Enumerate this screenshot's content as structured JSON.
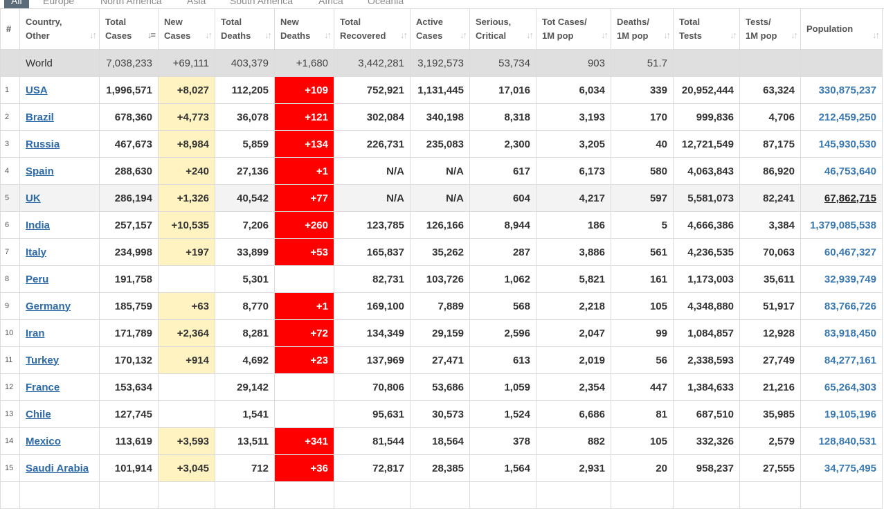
{
  "tabs": [
    "All",
    "Europe",
    "North America",
    "Asia",
    "South America",
    "Africa",
    "Oceania"
  ],
  "headers": {
    "num": "#",
    "country": [
      "Country,",
      "Other"
    ],
    "total_cases": [
      "Total",
      "Cases"
    ],
    "new_cases": [
      "New",
      "Cases"
    ],
    "total_deaths": [
      "Total",
      "Deaths"
    ],
    "new_deaths": [
      "New",
      "Deaths"
    ],
    "total_recovered": [
      "Total",
      "Recovered"
    ],
    "active_cases": [
      "Active",
      "Cases"
    ],
    "serious": [
      "Serious,",
      "Critical"
    ],
    "tot_cases_pop": [
      "Tot Cases/",
      "1M pop"
    ],
    "deaths_pop": [
      "Deaths/",
      "1M pop"
    ],
    "total_tests": [
      "Total",
      "Tests"
    ],
    "tests_pop": [
      "Tests/",
      "1M pop"
    ],
    "population": "Population"
  },
  "world": {
    "country": "World",
    "total_cases": "7,038,233",
    "new_cases": "+69,111",
    "total_deaths": "403,379",
    "new_deaths": "+1,680",
    "total_recovered": "3,442,281",
    "active_cases": "3,192,573",
    "serious": "53,734",
    "tot_cases_pop": "903",
    "deaths_pop": "51.7",
    "total_tests": "",
    "tests_pop": "",
    "population": ""
  },
  "rows": [
    {
      "num": "1",
      "country": "USA",
      "total_cases": "1,996,571",
      "new_cases": "+8,027",
      "total_deaths": "112,205",
      "new_deaths": "+109",
      "total_recovered": "752,921",
      "active_cases": "1,131,445",
      "serious": "17,016",
      "tot_cases_pop": "6,034",
      "deaths_pop": "339",
      "total_tests": "20,952,444",
      "tests_pop": "63,324",
      "population": "330,875,237"
    },
    {
      "num": "2",
      "country": "Brazil",
      "total_cases": "678,360",
      "new_cases": "+4,773",
      "total_deaths": "36,078",
      "new_deaths": "+121",
      "total_recovered": "302,084",
      "active_cases": "340,198",
      "serious": "8,318",
      "tot_cases_pop": "3,193",
      "deaths_pop": "170",
      "total_tests": "999,836",
      "tests_pop": "4,706",
      "population": "212,459,250"
    },
    {
      "num": "3",
      "country": "Russia",
      "total_cases": "467,673",
      "new_cases": "+8,984",
      "total_deaths": "5,859",
      "new_deaths": "+134",
      "total_recovered": "226,731",
      "active_cases": "235,083",
      "serious": "2,300",
      "tot_cases_pop": "3,205",
      "deaths_pop": "40",
      "total_tests": "12,721,549",
      "tests_pop": "87,175",
      "population": "145,930,530"
    },
    {
      "num": "4",
      "country": "Spain",
      "total_cases": "288,630",
      "new_cases": "+240",
      "total_deaths": "27,136",
      "new_deaths": "+1",
      "total_recovered": "N/A",
      "active_cases": "N/A",
      "serious": "617",
      "tot_cases_pop": "6,173",
      "deaths_pop": "580",
      "total_tests": "4,063,843",
      "tests_pop": "86,920",
      "population": "46,753,640"
    },
    {
      "num": "5",
      "country": "UK",
      "total_cases": "286,194",
      "new_cases": "+1,326",
      "total_deaths": "40,542",
      "new_deaths": "+77",
      "total_recovered": "N/A",
      "active_cases": "N/A",
      "serious": "604",
      "tot_cases_pop": "4,217",
      "deaths_pop": "597",
      "total_tests": "5,581,073",
      "tests_pop": "82,241",
      "population": "67,862,715",
      "highlighted": true
    },
    {
      "num": "6",
      "country": "India",
      "total_cases": "257,157",
      "new_cases": "+10,535",
      "total_deaths": "7,206",
      "new_deaths": "+260",
      "total_recovered": "123,785",
      "active_cases": "126,166",
      "serious": "8,944",
      "tot_cases_pop": "186",
      "deaths_pop": "5",
      "total_tests": "4,666,386",
      "tests_pop": "3,384",
      "population": "1,379,085,538"
    },
    {
      "num": "7",
      "country": "Italy",
      "total_cases": "234,998",
      "new_cases": "+197",
      "total_deaths": "33,899",
      "new_deaths": "+53",
      "total_recovered": "165,837",
      "active_cases": "35,262",
      "serious": "287",
      "tot_cases_pop": "3,886",
      "deaths_pop": "561",
      "total_tests": "4,236,535",
      "tests_pop": "70,063",
      "population": "60,467,327"
    },
    {
      "num": "8",
      "country": "Peru",
      "total_cases": "191,758",
      "new_cases": "",
      "total_deaths": "5,301",
      "new_deaths": "",
      "total_recovered": "82,731",
      "active_cases": "103,726",
      "serious": "1,062",
      "tot_cases_pop": "5,821",
      "deaths_pop": "161",
      "total_tests": "1,173,003",
      "tests_pop": "35,611",
      "population": "32,939,749"
    },
    {
      "num": "9",
      "country": "Germany",
      "total_cases": "185,759",
      "new_cases": "+63",
      "total_deaths": "8,770",
      "new_deaths": "+1",
      "total_recovered": "169,100",
      "active_cases": "7,889",
      "serious": "568",
      "tot_cases_pop": "2,218",
      "deaths_pop": "105",
      "total_tests": "4,348,880",
      "tests_pop": "51,917",
      "population": "83,766,726"
    },
    {
      "num": "10",
      "country": "Iran",
      "total_cases": "171,789",
      "new_cases": "+2,364",
      "total_deaths": "8,281",
      "new_deaths": "+72",
      "total_recovered": "134,349",
      "active_cases": "29,159",
      "serious": "2,596",
      "tot_cases_pop": "2,047",
      "deaths_pop": "99",
      "total_tests": "1,084,857",
      "tests_pop": "12,928",
      "population": "83,918,450"
    },
    {
      "num": "11",
      "country": "Turkey",
      "total_cases": "170,132",
      "new_cases": "+914",
      "total_deaths": "4,692",
      "new_deaths": "+23",
      "total_recovered": "137,969",
      "active_cases": "27,471",
      "serious": "613",
      "tot_cases_pop": "2,019",
      "deaths_pop": "56",
      "total_tests": "2,338,593",
      "tests_pop": "27,749",
      "population": "84,277,161"
    },
    {
      "num": "12",
      "country": "France",
      "total_cases": "153,634",
      "new_cases": "",
      "total_deaths": "29,142",
      "new_deaths": "",
      "total_recovered": "70,806",
      "active_cases": "53,686",
      "serious": "1,059",
      "tot_cases_pop": "2,354",
      "deaths_pop": "447",
      "total_tests": "1,384,633",
      "tests_pop": "21,216",
      "population": "65,264,303"
    },
    {
      "num": "13",
      "country": "Chile",
      "total_cases": "127,745",
      "new_cases": "",
      "total_deaths": "1,541",
      "new_deaths": "",
      "total_recovered": "95,631",
      "active_cases": "30,573",
      "serious": "1,524",
      "tot_cases_pop": "6,686",
      "deaths_pop": "81",
      "total_tests": "687,510",
      "tests_pop": "35,985",
      "population": "19,105,196"
    },
    {
      "num": "14",
      "country": "Mexico",
      "total_cases": "113,619",
      "new_cases": "+3,593",
      "total_deaths": "13,511",
      "new_deaths": "+341",
      "total_recovered": "81,544",
      "active_cases": "18,564",
      "serious": "378",
      "tot_cases_pop": "882",
      "deaths_pop": "105",
      "total_tests": "332,326",
      "tests_pop": "2,579",
      "population": "128,840,531"
    },
    {
      "num": "15",
      "country": "Saudi Arabia",
      "total_cases": "101,914",
      "new_cases": "+3,045",
      "total_deaths": "712",
      "new_deaths": "+36",
      "total_recovered": "72,817",
      "active_cases": "28,385",
      "serious": "1,564",
      "tot_cases_pop": "2,931",
      "deaths_pop": "20",
      "total_tests": "958,237",
      "tests_pop": "27,555",
      "population": "34,775,495"
    },
    {
      "num": "",
      "country": "",
      "total_cases": "",
      "new_cases": "",
      "total_deaths": "",
      "new_deaths": "",
      "total_recovered": "",
      "active_cases": "",
      "serious": "",
      "tot_cases_pop": "",
      "deaths_pop": "",
      "total_tests": "",
      "tests_pop": "",
      "population": ""
    }
  ],
  "colors": {
    "new_cases_bg": "#fff4c1",
    "new_deaths_bg": "#ff0000",
    "world_bg": "#dfdfdf",
    "link": "#2d6aa8"
  }
}
